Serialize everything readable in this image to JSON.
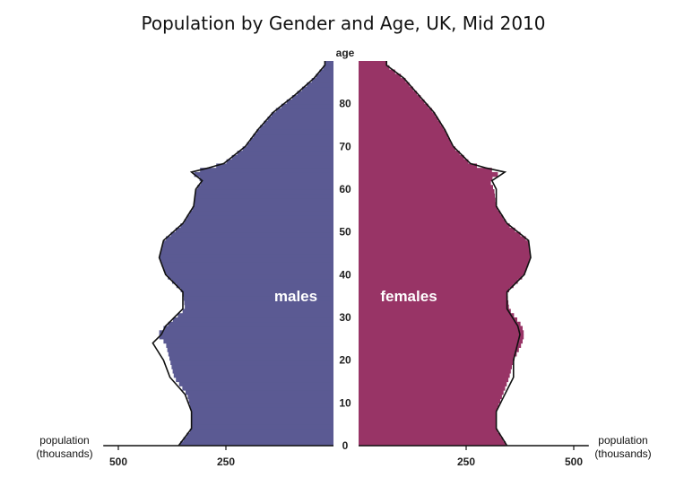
{
  "chart_data": {
    "type": "population-pyramid",
    "title": "Population by Gender and Age, UK, Mid 2010",
    "age_axis_label": "age",
    "age_ticks": [
      0,
      10,
      20,
      30,
      40,
      50,
      60,
      70,
      80
    ],
    "age_range": [
      0,
      90
    ],
    "x_axis_label_line1": "population",
    "x_axis_label_line2": "(thousands)",
    "x_ticks_left": [
      "500",
      "250"
    ],
    "x_ticks_right": [
      "250",
      "500"
    ],
    "x_tick_values": [
      250,
      500
    ],
    "x_range": [
      0,
      535
    ],
    "grid": false,
    "series": [
      {
        "name": "males",
        "side": "left",
        "color": "#5b5a93",
        "ages": [
          0,
          4,
          8,
          12,
          16,
          20,
          24,
          26,
          28,
          32,
          36,
          40,
          44,
          48,
          52,
          56,
          60,
          62,
          64,
          65,
          66,
          70,
          74,
          78,
          82,
          86,
          89
        ],
        "values": [
          360,
          330,
          330,
          340,
          370,
          380,
          390,
          410,
          390,
          345,
          350,
          390,
          405,
          395,
          350,
          325,
          320,
          305,
          330,
          290,
          255,
          205,
          175,
          140,
          90,
          45,
          20
        ],
        "outline_ages": [
          0,
          4,
          8,
          12,
          16,
          20,
          24,
          26,
          28,
          32,
          36,
          40,
          44,
          48,
          52,
          56,
          60,
          62,
          64,
          65,
          66,
          70,
          74,
          78,
          82,
          86,
          89
        ],
        "outline_values": [
          360,
          330,
          330,
          345,
          380,
          395,
          420,
          400,
          390,
          350,
          350,
          390,
          405,
          395,
          350,
          325,
          320,
          305,
          330,
          290,
          255,
          205,
          175,
          140,
          90,
          45,
          20
        ]
      },
      {
        "name": "females",
        "side": "right",
        "color": "#983466",
        "ages": [
          0,
          4,
          8,
          12,
          16,
          20,
          24,
          26,
          28,
          32,
          36,
          40,
          44,
          48,
          52,
          56,
          60,
          62,
          64,
          65,
          66,
          70,
          74,
          78,
          82,
          86,
          89
        ],
        "values": [
          345,
          320,
          320,
          335,
          350,
          360,
          380,
          385,
          380,
          350,
          345,
          385,
          400,
          395,
          345,
          320,
          315,
          305,
          330,
          290,
          260,
          220,
          200,
          175,
          140,
          105,
          65
        ],
        "outline_ages": [
          0,
          4,
          8,
          12,
          16,
          20,
          24,
          26,
          28,
          32,
          36,
          40,
          44,
          48,
          52,
          56,
          60,
          62,
          64,
          65,
          66,
          70,
          74,
          78,
          82,
          86,
          89
        ],
        "outline_values": [
          345,
          320,
          320,
          340,
          360,
          360,
          370,
          375,
          370,
          345,
          345,
          385,
          400,
          395,
          345,
          320,
          320,
          310,
          340,
          295,
          260,
          220,
          200,
          175,
          140,
          105,
          65
        ]
      }
    ]
  }
}
